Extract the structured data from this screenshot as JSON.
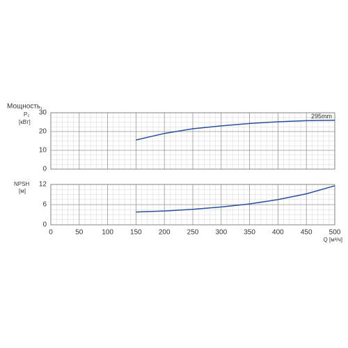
{
  "chart_data": [
    {
      "type": "line",
      "ylabel": "Мощность,",
      "ylabel_sub": "P₂",
      "yunit": "[кВт]",
      "x": [
        150,
        200,
        250,
        300,
        350,
        400,
        450,
        500
      ],
      "series": [
        {
          "name": "295mm",
          "color": "#2a4f9a",
          "values": [
            15.5,
            19,
            21.5,
            23,
            24.3,
            25.2,
            25.8,
            26
          ]
        }
      ],
      "ylim": [
        0,
        30
      ],
      "yticks": [
        0,
        10,
        20,
        30
      ],
      "grid": true
    },
    {
      "type": "line",
      "ylabel": "NPSH",
      "yunit": "[м]",
      "xlabel": "Q [м³/ч]",
      "x": [
        150,
        200,
        250,
        300,
        350,
        400,
        450,
        500
      ],
      "series": [
        {
          "color": "#2a4f9a",
          "values": [
            3.8,
            4.1,
            4.6,
            5.3,
            6.2,
            7.5,
            9.2,
            11.6
          ]
        }
      ],
      "xlim": [
        0,
        500
      ],
      "xticks": [
        0,
        50,
        100,
        150,
        200,
        250,
        300,
        350,
        400,
        450,
        500
      ],
      "ylim": [
        0,
        12
      ],
      "yticks": [
        0,
        6,
        12
      ],
      "grid": true
    }
  ]
}
